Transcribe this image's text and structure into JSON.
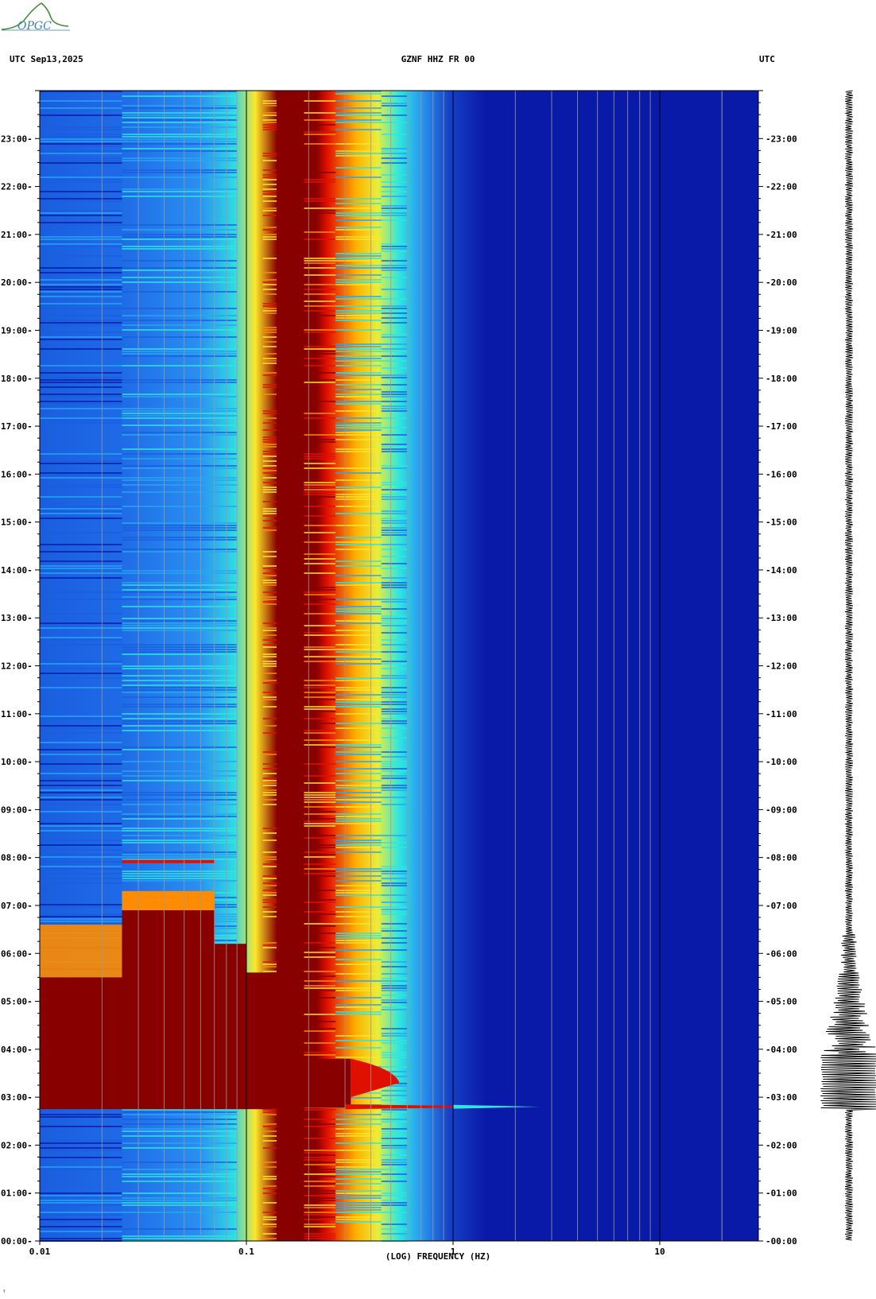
{
  "header": {
    "left": "UTC  Sep13,2025",
    "center": "GZNF HHZ FR 00",
    "right": "UTC"
  },
  "logo": {
    "text": "OPGC"
  },
  "footer": {
    "mark": "↑"
  },
  "colors": {
    "low": "#0a1aa8",
    "mid_blue": "#1a5ee0",
    "light_blue": "#27a6f0",
    "cyan": "#2fe6e0",
    "yellow": "#ffe628",
    "orange": "#ff8c00",
    "red": "#e01000",
    "saturated": "#880000",
    "trace": "#000000"
  },
  "chart_data": {
    "type": "heatmap",
    "xlabel": "(LOG) FREQUENCY (HZ)",
    "x_scale": "log",
    "xlim": [
      0.01,
      30
    ],
    "x_ticks": [
      {
        "value": 0.01,
        "label": "0.01"
      },
      {
        "value": 0.1,
        "label": "0.1"
      },
      {
        "value": 1,
        "label": "1"
      },
      {
        "value": 10,
        "label": "10"
      }
    ],
    "ylim": [
      "00:00",
      "24:00"
    ],
    "y_ticks_left": [
      "00:00",
      "01:00",
      "02:00",
      "03:00",
      "04:00",
      "05:00",
      "06:00",
      "07:00",
      "08:00",
      "09:00",
      "10:00",
      "11:00",
      "12:00",
      "13:00",
      "14:00",
      "15:00",
      "16:00",
      "17:00",
      "18:00",
      "19:00",
      "20:00",
      "21:00",
      "22:00",
      "23:00"
    ],
    "y_ticks_right": [
      "00:00",
      "01:00",
      "02:00",
      "03:00",
      "04:00",
      "05:00",
      "06:00",
      "07:00",
      "08:00",
      "09:00",
      "10:00",
      "11:00",
      "12:00",
      "13:00",
      "14:00",
      "15:00",
      "16:00",
      "17:00",
      "18:00",
      "19:00",
      "20:00",
      "21:00",
      "22:00",
      "23:00"
    ],
    "events": [
      {
        "start": "02:48",
        "end": "05:30",
        "description_hours": [
          2.8,
          5.5
        ]
      }
    ]
  }
}
